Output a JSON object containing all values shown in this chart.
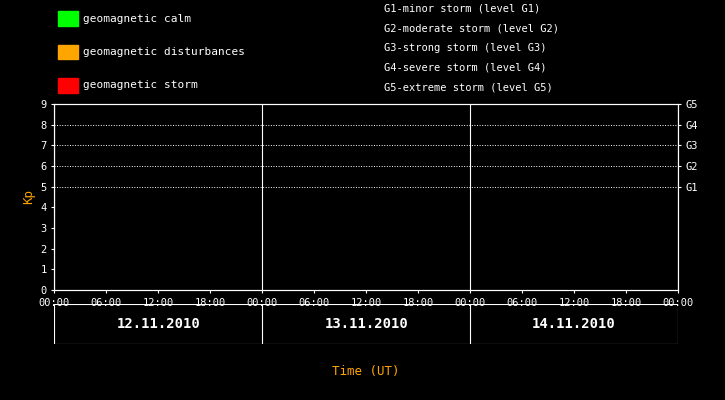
{
  "background_color": "#000000",
  "plot_bg_color": "#000000",
  "text_color": "#ffffff",
  "axis_color": "#ffffff",
  "title_color": "#ffa500",
  "xlabel": "Time (UT)",
  "ylabel": "Kp",
  "ylim": [
    0,
    9
  ],
  "yticks": [
    0,
    1,
    2,
    3,
    4,
    5,
    6,
    7,
    8,
    9
  ],
  "days": [
    "12.11.2010",
    "13.11.2010",
    "14.11.2010"
  ],
  "dotted_lines_y": [
    5,
    6,
    7,
    8,
    9
  ],
  "dotted_line_color": "#ffffff",
  "vertical_line_color": "#ffffff",
  "legend_items": [
    {
      "color": "#00ff00",
      "label": "geomagnetic calm"
    },
    {
      "color": "#ffa500",
      "label": "geomagnetic disturbances"
    },
    {
      "color": "#ff0000",
      "label": "geomagnetic storm"
    }
  ],
  "g_labels": [
    {
      "y": 5,
      "text": "G1"
    },
    {
      "y": 6,
      "text": "G2"
    },
    {
      "y": 7,
      "text": "G3"
    },
    {
      "y": 8,
      "text": "G4"
    },
    {
      "y": 9,
      "text": "G5"
    }
  ],
  "g_descriptions": [
    "G1-minor storm (level G1)",
    "G2-moderate storm (level G2)",
    "G3-strong storm (level G3)",
    "G4-severe storm (level G4)",
    "G5-extreme storm (level G5)"
  ],
  "font_family": "monospace",
  "legend_fontsize": 8,
  "axis_fontsize": 7.5,
  "ylabel_fontsize": 9,
  "xlabel_fontsize": 9,
  "day_label_fontsize": 10,
  "g_desc_fontsize": 7.5
}
